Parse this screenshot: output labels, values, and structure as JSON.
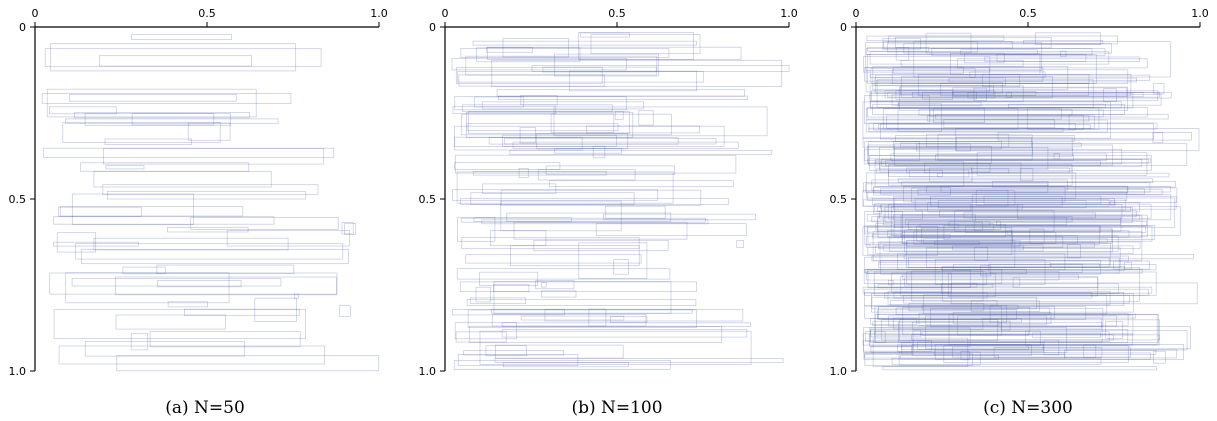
{
  "style": {
    "box_color": "#3f51a3",
    "axis_color": "#000000"
  },
  "chart_data": [
    {
      "type": "scatter",
      "caption": "(a) N=50",
      "n_boxes": 50,
      "xlim": [
        0,
        1
      ],
      "ylim": [
        0,
        1
      ],
      "x_ticks": [
        "0",
        "0.5",
        "1.0"
      ],
      "y_ticks": [
        "0",
        "0.5",
        "1.0"
      ],
      "box_opacity": 0.32,
      "seed": 50
    },
    {
      "type": "scatter",
      "caption": "(b) N=100",
      "n_boxes": 100,
      "xlim": [
        0,
        1
      ],
      "ylim": [
        0,
        1
      ],
      "x_ticks": [
        "0",
        "0.5",
        "1.0"
      ],
      "y_ticks": [
        "0",
        "0.5",
        "1.0"
      ],
      "box_opacity": 0.32,
      "seed": 100
    },
    {
      "type": "scatter",
      "caption": "(c) N=300",
      "n_boxes": 300,
      "xlim": [
        0,
        1
      ],
      "ylim": [
        0,
        1
      ],
      "x_ticks": [
        "0",
        "0.5",
        "1.0"
      ],
      "y_ticks": [
        "0",
        "0.5",
        "1.0"
      ],
      "box_opacity": 0.32,
      "seed": 300
    }
  ]
}
